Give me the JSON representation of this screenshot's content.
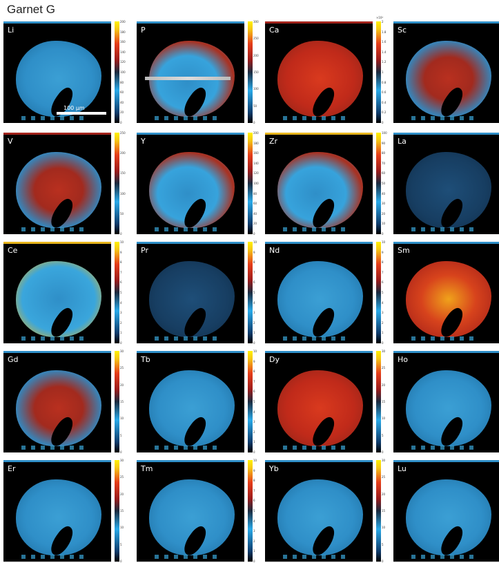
{
  "title": "Garnet G",
  "scale_label": "100 µm",
  "panels": [
    {
      "element": "Li",
      "ticks": [
        "200",
        "180",
        "160",
        "140",
        "120",
        "100",
        "80",
        "60",
        "40",
        "20",
        "0"
      ],
      "fill": "g-blue",
      "strip": "#2f8fc8"
    },
    {
      "element": "P",
      "ticks": [
        "300",
        "250",
        "200",
        "150",
        "100",
        "50",
        "0"
      ],
      "fill": "g-mixed",
      "strip": "#2f8fc8"
    },
    {
      "element": "Ca",
      "mult": "×10⁴",
      "ticks": [
        "2",
        "1.8",
        "1.6",
        "1.4",
        "1.2",
        "1",
        "0.8",
        "0.6",
        "0.4",
        "0.2",
        "0"
      ],
      "fill": "g-redf",
      "strip": "#a3241c"
    },
    {
      "element": "Sc",
      "ticks": [],
      "fill": "g-red",
      "strip": "#2f8fc8"
    },
    {
      "element": "V",
      "ticks": [
        "250",
        "200",
        "150",
        "100",
        "50",
        "0"
      ],
      "fill": "g-red",
      "strip": "#a3241c"
    },
    {
      "element": "Y",
      "ticks": [
        "200",
        "180",
        "160",
        "140",
        "120",
        "100",
        "80",
        "60",
        "40",
        "20",
        "0"
      ],
      "fill": "g-mixed",
      "strip": "#2f8fc8"
    },
    {
      "element": "Zr",
      "ticks": [
        "100",
        "90",
        "80",
        "70",
        "60",
        "50",
        "40",
        "30",
        "20",
        "10",
        "0"
      ],
      "fill": "g-mixed",
      "strip": "#e7b51c"
    },
    {
      "element": "La",
      "ticks": [],
      "fill": "g-dark",
      "strip": "#2f8fc8"
    },
    {
      "element": "Ce",
      "ticks": [
        "10",
        "9",
        "8",
        "7",
        "6",
        "5",
        "4",
        "3",
        "2",
        "1",
        "0"
      ],
      "fill": "g-ce",
      "strip": "#e7b51c"
    },
    {
      "element": "Pr",
      "ticks": [
        "10",
        "9",
        "8",
        "7",
        "6",
        "5",
        "4",
        "3",
        "2",
        "1",
        "0"
      ],
      "fill": "g-dark",
      "strip": "#2f8fc8"
    },
    {
      "element": "Nd",
      "ticks": [
        "10",
        "9",
        "8",
        "7",
        "6",
        "5",
        "4",
        "3",
        "2",
        "1",
        "0"
      ],
      "fill": "g-blue",
      "strip": "#2f8fc8"
    },
    {
      "element": "Sm",
      "ticks": [],
      "fill": "g-sm",
      "strip": "#2f8fc8"
    },
    {
      "element": "Gd",
      "ticks": [
        "30",
        "25",
        "20",
        "15",
        "10",
        "5",
        "0"
      ],
      "fill": "g-red",
      "strip": "#2f8fc8"
    },
    {
      "element": "Tb",
      "ticks": [
        "10",
        "9",
        "8",
        "7",
        "6",
        "5",
        "4",
        "3",
        "2",
        "1",
        "0"
      ],
      "fill": "g-blue",
      "strip": "#2f8fc8"
    },
    {
      "element": "Dy",
      "ticks": [
        "30",
        "25",
        "20",
        "15",
        "10",
        "5",
        "0"
      ],
      "fill": "g-redf",
      "strip": "#2f8fc8"
    },
    {
      "element": "Ho",
      "ticks": [],
      "fill": "g-blue",
      "strip": "#2f8fc8"
    },
    {
      "element": "Er",
      "ticks": [
        "30",
        "25",
        "20",
        "15",
        "10",
        "5",
        "0"
      ],
      "fill": "g-blue",
      "strip": "#2f8fc8"
    },
    {
      "element": "Tm",
      "ticks": [
        "10",
        "9",
        "8",
        "7",
        "6",
        "5",
        "4",
        "3",
        "2",
        "1",
        "0"
      ],
      "fill": "g-blue",
      "strip": "#2f8fc8"
    },
    {
      "element": "Yb",
      "ticks": [
        "30",
        "25",
        "20",
        "15",
        "10",
        "5",
        "0"
      ],
      "fill": "g-blue",
      "strip": "#2f8fc8"
    },
    {
      "element": "Lu",
      "ticks": [],
      "fill": "g-blue",
      "strip": "#2f8fc8"
    }
  ]
}
